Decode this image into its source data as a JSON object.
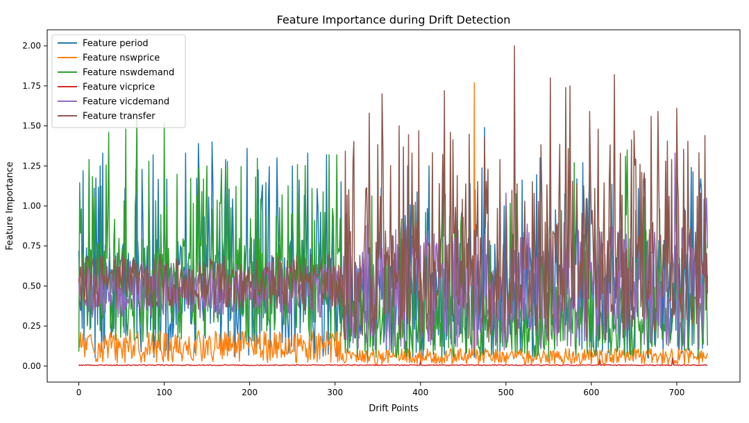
{
  "chart_data": {
    "type": "line",
    "title": "Feature Importance during Drift Detection",
    "xlabel": "Drift Points",
    "ylabel": "Feature Importance",
    "xlim": [
      -37,
      774
    ],
    "ylim": [
      -0.1,
      2.1
    ],
    "x_ticks": [
      0,
      100,
      200,
      300,
      400,
      500,
      600,
      700
    ],
    "y_ticks": [
      0.0,
      0.25,
      0.5,
      0.75,
      1.0,
      1.25,
      1.5,
      1.75,
      2.0
    ],
    "x_tick_labels": [
      "0",
      "100",
      "200",
      "300",
      "400",
      "500",
      "600",
      "700"
    ],
    "y_tick_labels": [
      "0.00",
      "0.25",
      "0.50",
      "0.75",
      "1.00",
      "1.25",
      "1.50",
      "1.75",
      "2.00"
    ],
    "legend_position": "upper left",
    "grid": false,
    "n_points": 737,
    "series": [
      {
        "name": "Feature period",
        "color": "#1f77b4",
        "values_approx": "oscillates 0.05–1.40, dense spikes across all drift points",
        "peaks": [
          [
            0,
            0.72
          ],
          [
            5,
            1.22
          ],
          [
            12,
            1.29
          ],
          [
            25,
            1.25
          ],
          [
            28,
            1.33
          ],
          [
            87,
            1.32
          ],
          [
            125,
            1.33
          ],
          [
            140,
            1.39
          ],
          [
            156,
            1.4
          ],
          [
            172,
            1.29
          ],
          [
            197,
            1.36
          ],
          [
            232,
            1.3
          ],
          [
            250,
            1.25
          ],
          [
            268,
            1.33
          ],
          [
            290,
            1.32
          ],
          [
            385,
            1.25
          ],
          [
            410,
            1.25
          ],
          [
            475,
            1.49
          ],
          [
            540,
            1.3
          ],
          [
            590,
            1.27
          ],
          [
            663,
            1.17
          ],
          [
            700,
            1.18
          ],
          [
            728,
            1.17
          ]
        ],
        "range": [
          0.03,
          1.49
        ]
      },
      {
        "name": "Feature nswprice",
        "color": "#ff7f0e",
        "values_approx": "low noise 0.0–0.25, single spike near x=463",
        "peaks": [
          [
            463,
            1.77
          ],
          [
            60,
            0.23
          ],
          [
            140,
            0.22
          ],
          [
            5,
            0.2
          ]
        ],
        "range": [
          0.0,
          1.77
        ]
      },
      {
        "name": "Feature nswdemand",
        "color": "#2ca02c",
        "values_approx": "oscillates 0.1–1.5 for x<310, smaller afterwards",
        "peaks": [
          [
            0,
            0.09
          ],
          [
            2,
            0.83
          ],
          [
            12,
            1.28
          ],
          [
            35,
            1.46
          ],
          [
            55,
            1.48
          ],
          [
            68,
            1.55
          ],
          [
            100,
            1.52
          ],
          [
            150,
            1.25
          ],
          [
            207,
            1.18
          ],
          [
            293,
            1.32
          ],
          [
            302,
            1.32
          ],
          [
            640,
            1.31
          ],
          [
            642,
            1.35
          ],
          [
            580,
            1.27
          ],
          [
            700,
            0.95
          ]
        ],
        "range": [
          0.08,
          1.55
        ]
      },
      {
        "name": "Feature vicprice",
        "color": "#d62728",
        "values_approx": "near 0.00–0.05 throughout, small bumps near x=400, 620, 695",
        "peaks": [
          [
            0,
            0.01
          ],
          [
            400,
            0.03
          ],
          [
            610,
            0.04
          ],
          [
            695,
            0.05
          ]
        ],
        "range": [
          0.0,
          0.05
        ]
      },
      {
        "name": "Feature vicdemand",
        "color": "#9467bd",
        "values_approx": "oscillates 0.1–1.0, larger after x=310",
        "peaks": [
          [
            0,
            0.55
          ],
          [
            500,
            1.08
          ],
          [
            698,
            1.33
          ],
          [
            735,
            1.05
          ]
        ],
        "range": [
          0.05,
          1.33
        ]
      },
      {
        "name": "Feature transfer",
        "color": "#8c564b",
        "values_approx": "0.3–0.7 for x<310, large spikes 1.0–2.0 afterwards",
        "peaks": [
          [
            0,
            0.52
          ],
          [
            340,
            1.58
          ],
          [
            355,
            1.7
          ],
          [
            375,
            1.5
          ],
          [
            398,
            1.47
          ],
          [
            428,
            1.72
          ],
          [
            435,
            1.46
          ],
          [
            510,
            2.0
          ],
          [
            552,
            1.8
          ],
          [
            570,
            1.74
          ],
          [
            575,
            1.75
          ],
          [
            598,
            1.59
          ],
          [
            608,
            1.48
          ],
          [
            627,
            1.82
          ],
          [
            650,
            1.47
          ],
          [
            670,
            1.56
          ],
          [
            678,
            1.59
          ],
          [
            700,
            1.61
          ],
          [
            733,
            1.44
          ]
        ],
        "range": [
          0.1,
          2.0
        ]
      }
    ]
  }
}
